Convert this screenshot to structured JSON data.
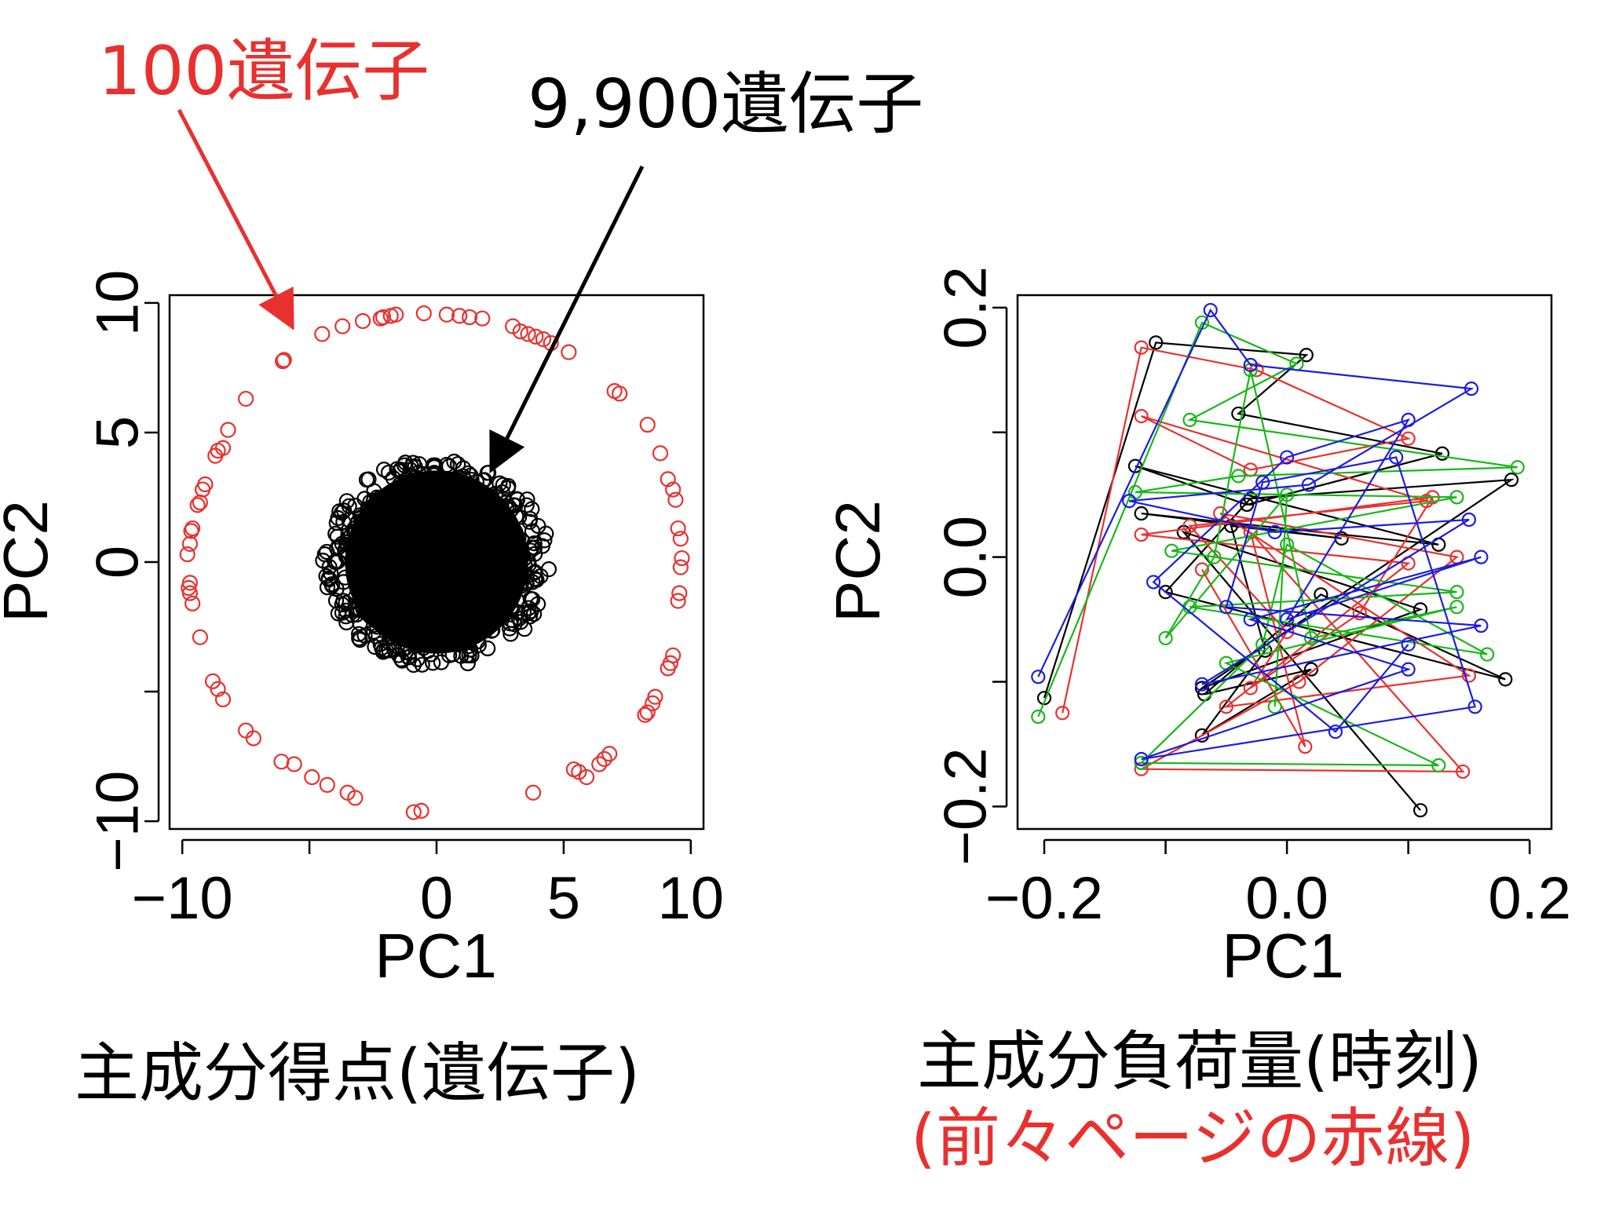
{
  "annotations": {
    "red_label": "100遺伝子",
    "black_label": "9,900遺伝子",
    "left_caption": "主成分得点(遺伝子)",
    "right_caption": "主成分負荷量(時刻)",
    "right_subcaption": "(前々ページの赤線)"
  },
  "colors": {
    "red": "#e8312f",
    "black": "#000000",
    "green": "#18b818",
    "blue": "#1c1ce0"
  },
  "chart_data": [
    {
      "type": "scatter",
      "title": "",
      "xlabel": "PC1",
      "ylabel": "PC2",
      "xlim": [
        -10.5,
        10.5
      ],
      "ylim": [
        -10.3,
        10.3
      ],
      "xticks": [
        -10,
        -5,
        0,
        5,
        10
      ],
      "xtick_labels": [
        "−10",
        "",
        "0",
        "5",
        "10"
      ],
      "yticks": [
        -10,
        -5,
        0,
        5,
        10
      ],
      "ytick_labels": [
        "−10",
        "",
        "0",
        "5",
        "10"
      ],
      "grid": false,
      "series": [
        {
          "color": "red",
          "count": 100,
          "points": [
            [
              -6,
              7.8
            ],
            [
              -4.5,
              8.8
            ],
            [
              -3.7,
              9.1
            ],
            [
              -2.9,
              9.3
            ],
            [
              -2.2,
              9.4
            ],
            [
              -2.1,
              9.45
            ],
            [
              -1.8,
              9.5
            ],
            [
              -1.6,
              9.55
            ],
            [
              -0.5,
              9.6
            ],
            [
              0.4,
              9.55
            ],
            [
              0.9,
              9.5
            ],
            [
              1.3,
              9.45
            ],
            [
              1.8,
              9.4
            ],
            [
              3,
              9.1
            ],
            [
              3.3,
              8.9
            ],
            [
              3.6,
              8.8
            ],
            [
              3.9,
              8.7
            ],
            [
              4.2,
              8.6
            ],
            [
              4.5,
              8.45
            ],
            [
              5.2,
              8.1
            ],
            [
              7,
              6.6
            ],
            [
              7.2,
              6.5
            ],
            [
              8.3,
              5.3
            ],
            [
              8.8,
              4.2
            ],
            [
              9.1,
              3.2
            ],
            [
              9.3,
              2.8
            ],
            [
              9.4,
              2.4
            ],
            [
              9.5,
              1.3
            ],
            [
              9.6,
              0.9
            ],
            [
              9.65,
              0.15
            ],
            [
              9.6,
              -0.2
            ],
            [
              9.55,
              -1.2
            ],
            [
              9.5,
              -1.5
            ],
            [
              9.3,
              -3.6
            ],
            [
              9.2,
              -3.9
            ],
            [
              9.1,
              -4.1
            ],
            [
              8.6,
              -5.2
            ],
            [
              8.5,
              -5.45
            ],
            [
              8.3,
              -5.8
            ],
            [
              8.2,
              -5.9
            ],
            [
              6.8,
              -7.4
            ],
            [
              6.6,
              -7.6
            ],
            [
              6.4,
              -7.8
            ],
            [
              5.9,
              -8.3
            ],
            [
              5.6,
              -8.1
            ],
            [
              5.4,
              -8.0
            ],
            [
              3.8,
              -8.9
            ],
            [
              -0.6,
              -9.6
            ],
            [
              -0.9,
              -9.65
            ],
            [
              -3.2,
              -9.1
            ],
            [
              -3.5,
              -8.9
            ],
            [
              -4.3,
              -8.6
            ],
            [
              -4.9,
              -8.3
            ],
            [
              -5.6,
              -7.8
            ],
            [
              -6.1,
              -7.7
            ],
            [
              -7.2,
              -6.8
            ],
            [
              -7.5,
              -6.5
            ],
            [
              -8.4,
              -5.3
            ],
            [
              -8.6,
              -4.9
            ],
            [
              -8.8,
              -4.6
            ],
            [
              -9.3,
              -2.9
            ],
            [
              -9.6,
              -1.6
            ],
            [
              -9.7,
              -1.2
            ],
            [
              -9.75,
              -1.0
            ],
            [
              -9.7,
              -0.8
            ],
            [
              -9.8,
              0.3
            ],
            [
              -9.7,
              0.7
            ],
            [
              -9.65,
              1.2
            ],
            [
              -9.6,
              1.3
            ],
            [
              -9.4,
              2.2
            ],
            [
              -9.3,
              2.3
            ],
            [
              -9.2,
              2.8
            ],
            [
              -9.1,
              3.0
            ],
            [
              -8.7,
              4.1
            ],
            [
              -8.6,
              4.3
            ],
            [
              -8.4,
              4.4
            ],
            [
              -8.2,
              5.1
            ],
            [
              -7.5,
              6.3
            ],
            [
              -6.05,
              7.75
            ]
          ]
        },
        {
          "color": "black",
          "count": 9900,
          "distribution": "dense cluster centered at (0, 0), radius about 4"
        }
      ]
    },
    {
      "type": "line",
      "title": "",
      "xlabel": "PC1",
      "ylabel": "PC2",
      "xlim": [
        -0.222,
        0.218
      ],
      "ylim": [
        -0.218,
        0.21
      ],
      "xticks": [
        -0.2,
        -0.1,
        0.0,
        0.1,
        0.2
      ],
      "xtick_labels": [
        "−0.2",
        "",
        "0.0",
        "",
        "0.2"
      ],
      "yticks": [
        -0.2,
        -0.1,
        0.0,
        0.1,
        0.2
      ],
      "ytick_labels": [
        "−0.2",
        "",
        "0.0",
        "",
        "0.2"
      ],
      "grid": false,
      "series": [
        {
          "color": "black",
          "points": [
            [
              -0.2,
              -0.113
            ],
            [
              -0.108,
              0.172
            ],
            [
              0.016,
              0.162
            ],
            [
              -0.04,
              0.115
            ],
            [
              0.128,
              0.083
            ],
            [
              -0.033,
              0.042
            ],
            [
              -0.125,
              0.073
            ],
            [
              0.125,
              0.01
            ],
            [
              -0.12,
              0.035
            ],
            [
              0.045,
              0.015
            ],
            [
              -0.046,
              0.025
            ],
            [
              -0.018,
              -0.075
            ],
            [
              -0.07,
              -0.143
            ],
            [
              0.02,
              -0.09
            ],
            [
              -0.068,
              -0.11
            ],
            [
              0.028,
              -0.03
            ],
            [
              0.18,
              -0.098
            ],
            [
              -0.1,
              -0.028
            ],
            [
              -0.03,
              0.047
            ],
            [
              0.185,
              0.062
            ],
            [
              -0.07,
              -0.105
            ],
            [
              0.11,
              -0.042
            ],
            [
              -0.085,
              0.02
            ],
            [
              0.11,
              -0.203
            ]
          ]
        },
        {
          "color": "red",
          "points": [
            [
              -0.185,
              -0.125
            ],
            [
              -0.12,
              0.168
            ],
            [
              -0.025,
              0.15
            ],
            [
              0.1,
              0.095
            ],
            [
              -0.03,
              0.07
            ],
            [
              -0.12,
              0.113
            ],
            [
              0.115,
              0.045
            ],
            [
              -0.08,
              0.025
            ],
            [
              0.0,
              -0.06
            ],
            [
              -0.03,
              -0.105
            ],
            [
              0.06,
              -0.045
            ],
            [
              0.12,
              0.048
            ],
            [
              -0.12,
              0.018
            ],
            [
              0.1,
              -0.005
            ],
            [
              -0.05,
              -0.12
            ],
            [
              0.15,
              -0.095
            ],
            [
              -0.055,
              0.035
            ],
            [
              0.14,
              0.0
            ],
            [
              0.01,
              -0.1
            ],
            [
              -0.12,
              -0.17
            ],
            [
              0.145,
              -0.172
            ],
            [
              -0.03,
              0.02
            ],
            [
              0.015,
              -0.152
            ],
            [
              -0.07,
              -0.01
            ]
          ]
        },
        {
          "color": "green",
          "points": [
            [
              -0.205,
              -0.128
            ],
            [
              -0.07,
              0.188
            ],
            [
              0.008,
              0.155
            ],
            [
              -0.08,
              0.11
            ],
            [
              0.19,
              0.072
            ],
            [
              -0.04,
              0.065
            ],
            [
              -0.125,
              0.052
            ],
            [
              0.14,
              0.048
            ],
            [
              -0.095,
              0.005
            ],
            [
              0.14,
              -0.028
            ],
            [
              -0.08,
              -0.04
            ],
            [
              0.165,
              -0.078
            ],
            [
              0.0,
              0.01
            ],
            [
              -0.02,
              -0.07
            ],
            [
              -0.12,
              -0.165
            ],
            [
              0.125,
              -0.167
            ],
            [
              -0.05,
              -0.085
            ],
            [
              0.14,
              -0.04
            ],
            [
              0.02,
              -0.065
            ],
            [
              -0.03,
              0.15
            ],
            [
              -0.06,
              0.0
            ],
            [
              -0.1,
              -0.065
            ],
            [
              0.0,
              0.05
            ],
            [
              -0.01,
              -0.12
            ]
          ]
        },
        {
          "color": "blue",
          "points": [
            [
              -0.205,
              -0.096
            ],
            [
              -0.063,
              0.198
            ],
            [
              -0.03,
              0.154
            ],
            [
              0.152,
              0.135
            ],
            [
              0.018,
              0.058
            ],
            [
              -0.13,
              0.045
            ],
            [
              -0.01,
              0.02
            ],
            [
              0.15,
              0.03
            ],
            [
              -0.07,
              -0.102
            ],
            [
              0.16,
              -0.055
            ],
            [
              -0.05,
              -0.04
            ],
            [
              -0.02,
              0.06
            ],
            [
              0.09,
              0.08
            ],
            [
              0.155,
              -0.12
            ],
            [
              -0.12,
              -0.162
            ],
            [
              0.1,
              -0.09
            ],
            [
              -0.03,
              -0.05
            ],
            [
              0.16,
              0.0
            ],
            [
              0.0,
              -0.05
            ],
            [
              0.1,
              0.11
            ],
            [
              0.0,
              0.08
            ],
            [
              -0.11,
              -0.02
            ],
            [
              0.04,
              -0.14
            ],
            [
              0.1,
              -0.07
            ]
          ]
        }
      ]
    }
  ]
}
